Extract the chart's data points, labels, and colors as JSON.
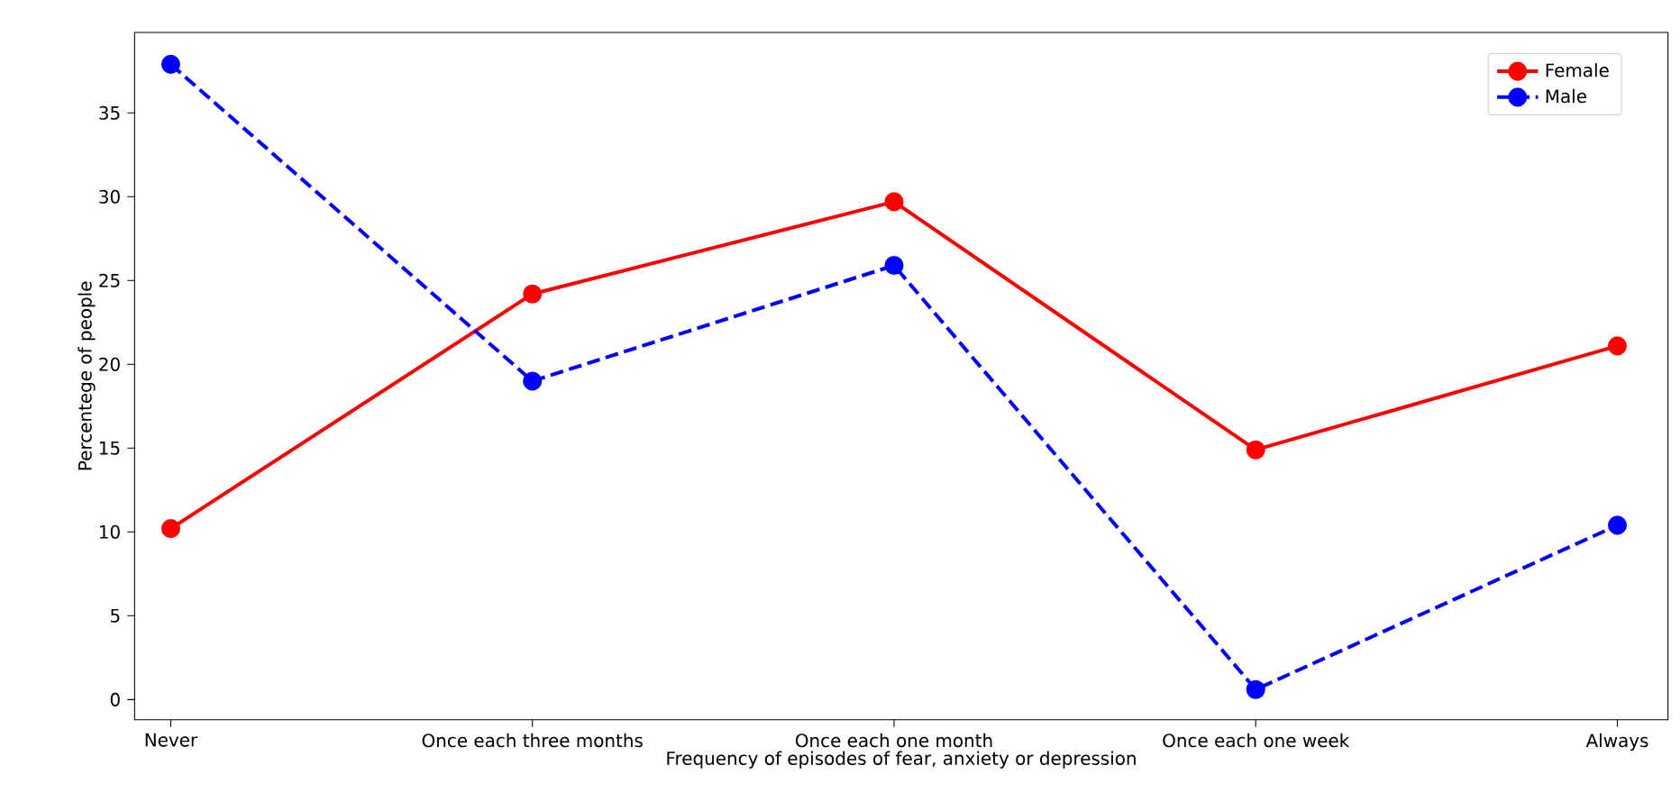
{
  "chart_data": {
    "type": "line",
    "xlabel": "Frequency of episodes of fear, anxiety or depression",
    "ylabel": "Percentege of people",
    "categories": [
      "Never",
      "Once each three months",
      "Once each one month",
      "Once each one week",
      "Always"
    ],
    "series": [
      {
        "name": "Female",
        "color": "#ff0000",
        "line_style": "solid",
        "values": [
          10.2,
          24.2,
          29.7,
          14.9,
          21.1
        ]
      },
      {
        "name": "Male",
        "color": "#0000ff",
        "line_style": "dashed",
        "values": [
          37.9,
          19.0,
          25.9,
          0.6,
          10.4
        ]
      }
    ],
    "ylim": [
      -1.2,
      39.8
    ],
    "yticks": [
      0,
      5,
      10,
      15,
      20,
      25,
      30,
      35
    ],
    "marker": "circle",
    "legend": "top right",
    "grid": false
  }
}
